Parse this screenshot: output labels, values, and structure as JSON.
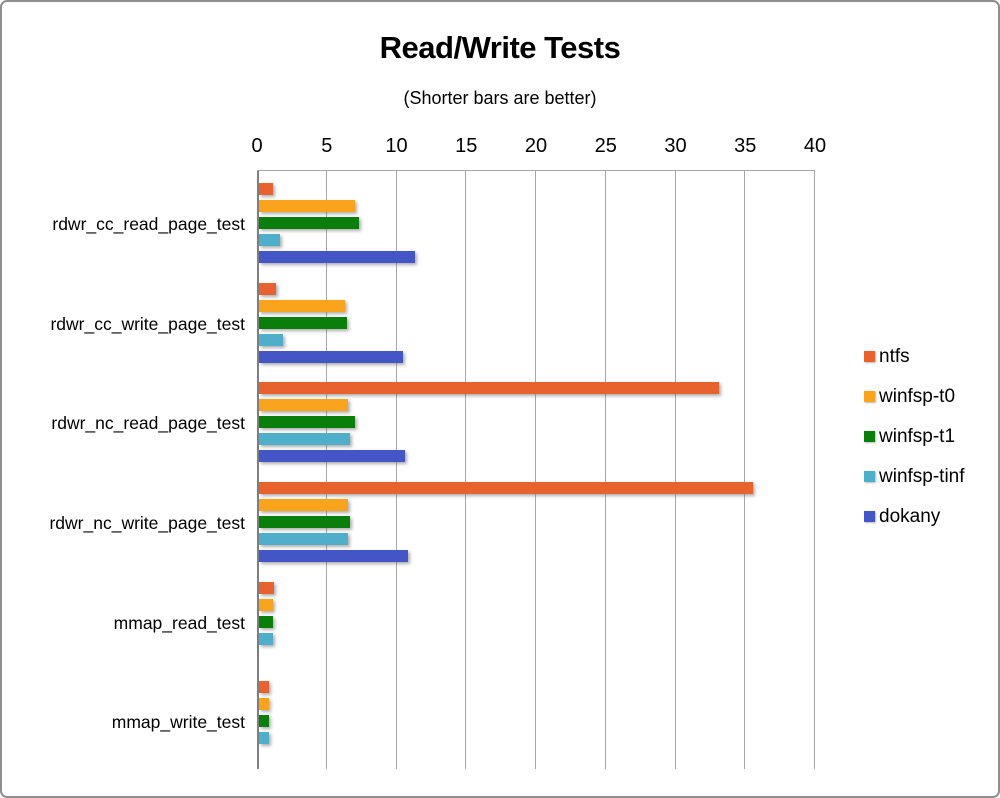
{
  "window": {
    "background_color": "#FFFFFF",
    "border_color": "#8F8F8F"
  },
  "chart_data": {
    "type": "bar",
    "orientation": "horizontal",
    "title": "Read/Write Tests",
    "subtitle": "(Shorter bars are better)",
    "categories": [
      "rdwr_cc_read_page_test",
      "rdwr_cc_write_page_test",
      "rdwr_nc_read_page_test",
      "rdwr_nc_write_page_test",
      "mmap_read_test",
      "mmap_write_test"
    ],
    "series": [
      {
        "name": "ntfs",
        "color": "#E8622F",
        "values": [
          1.0,
          1.2,
          33.0,
          35.4,
          1.1,
          0.7
        ]
      },
      {
        "name": "winfsp-t0",
        "color": "#F9A41C",
        "values": [
          6.9,
          6.2,
          6.4,
          6.4,
          1.0,
          0.7
        ]
      },
      {
        "name": "winfsp-t1",
        "color": "#0A7E0A",
        "values": [
          7.2,
          6.3,
          6.9,
          6.5,
          1.0,
          0.7
        ]
      },
      {
        "name": "winfsp-tinf",
        "color": "#4FAECA",
        "values": [
          1.5,
          1.7,
          6.5,
          6.4,
          1.0,
          0.7
        ]
      },
      {
        "name": "dokany",
        "color": "#4456C6",
        "values": [
          11.2,
          10.3,
          10.5,
          10.7,
          null,
          null
        ]
      }
    ],
    "xlim": [
      0,
      40
    ],
    "x_ticks": [
      0,
      5,
      10,
      15,
      20,
      25,
      30,
      35,
      40
    ],
    "grid": true,
    "legend_position": "right",
    "axis_color": "#7F7F7F",
    "gridline_color": "#A6A6A6"
  }
}
